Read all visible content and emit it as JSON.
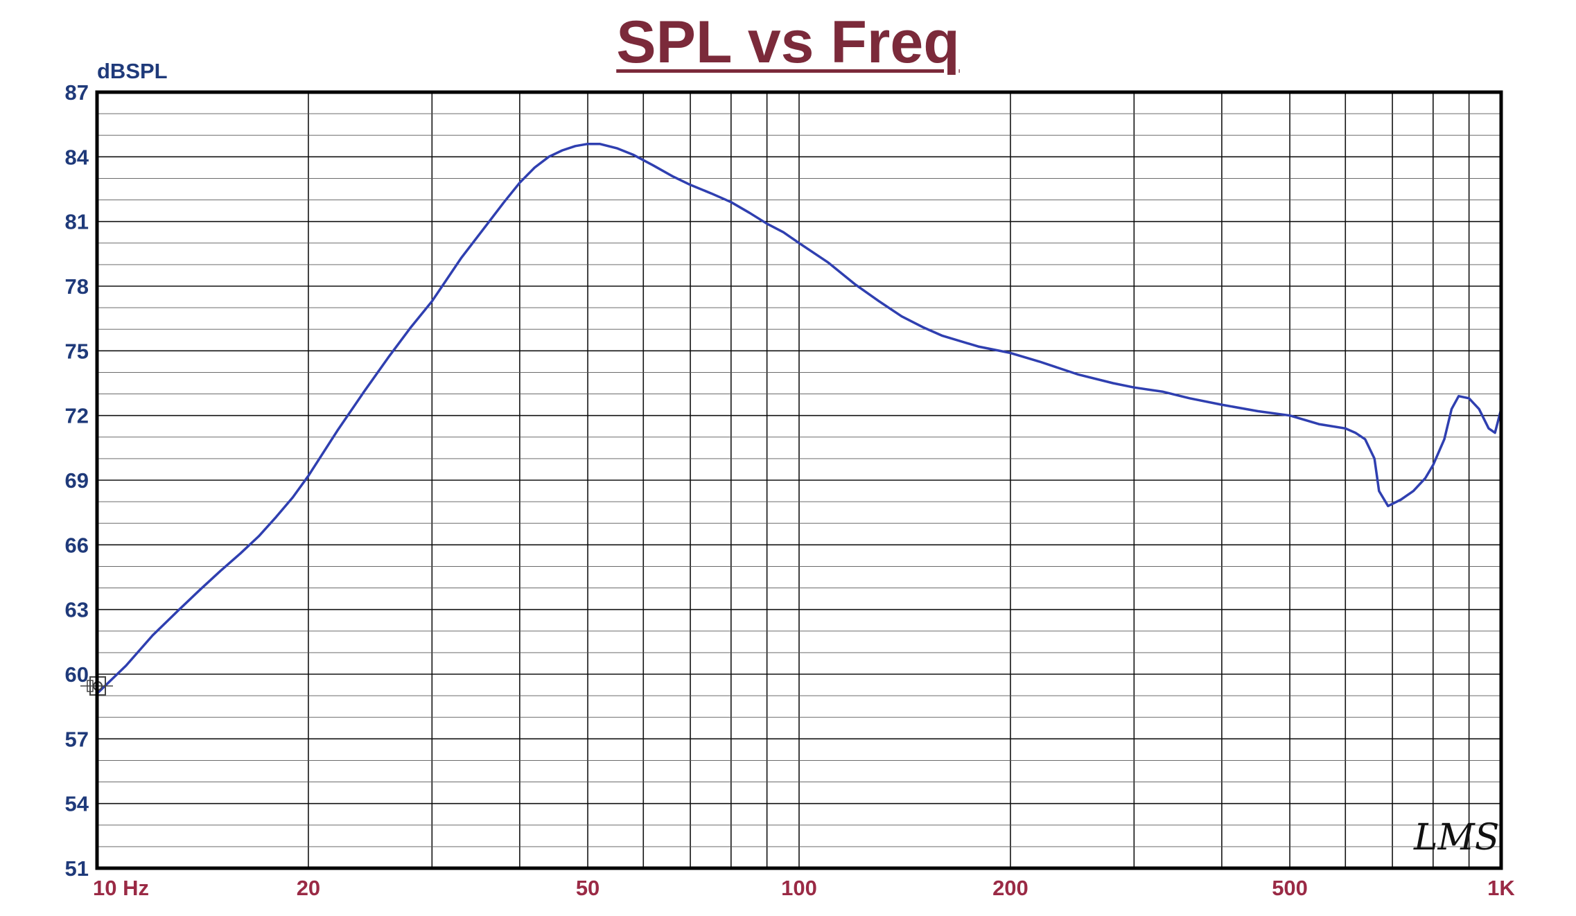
{
  "chart_data": {
    "type": "line",
    "title": "SPL vs Freq",
    "ylabel": "dBSPL",
    "xlabel": "",
    "x_scale": "log",
    "xlim": [
      10,
      1000
    ],
    "ylim": [
      51,
      87
    ],
    "x_ticks": [
      {
        "value": 10,
        "label": "10 Hz"
      },
      {
        "value": 20,
        "label": "20"
      },
      {
        "value": 50,
        "label": "50"
      },
      {
        "value": 100,
        "label": "100"
      },
      {
        "value": 200,
        "label": "200"
      },
      {
        "value": 500,
        "label": "500"
      },
      {
        "value": 1000,
        "label": "1K"
      }
    ],
    "y_ticks": [
      {
        "value": 87,
        "label": "87"
      },
      {
        "value": 84,
        "label": "84"
      },
      {
        "value": 81,
        "label": "81"
      },
      {
        "value": 78,
        "label": "78"
      },
      {
        "value": 75,
        "label": "75"
      },
      {
        "value": 72,
        "label": "72"
      },
      {
        "value": 69,
        "label": "69"
      },
      {
        "value": 66,
        "label": "66"
      },
      {
        "value": 63,
        "label": "63"
      },
      {
        "value": 60,
        "label": "60"
      },
      {
        "value": 57,
        "label": "57"
      },
      {
        "value": 54,
        "label": "54"
      },
      {
        "value": 51,
        "label": "51"
      }
    ],
    "grid": true,
    "series": [
      {
        "color": "#2f3fb0",
        "x": [
          10,
          11,
          12,
          13,
          14,
          15,
          16,
          17,
          18,
          19,
          20,
          22,
          24,
          26,
          28,
          30,
          33,
          36,
          38,
          40,
          42,
          44,
          46,
          48,
          50,
          52,
          55,
          58,
          62,
          66,
          70,
          75,
          80,
          85,
          90,
          95,
          100,
          110,
          120,
          130,
          140,
          150,
          160,
          180,
          200,
          220,
          250,
          280,
          300,
          330,
          360,
          400,
          450,
          500,
          550,
          600,
          620,
          640,
          660,
          670,
          690,
          720,
          750,
          780,
          800,
          830,
          850,
          870,
          900,
          930,
          960,
          980,
          1000
        ],
        "y": [
          59.1,
          60.4,
          61.8,
          62.9,
          63.9,
          64.8,
          65.6,
          66.4,
          67.3,
          68.2,
          69.2,
          71.3,
          73.1,
          74.7,
          76.1,
          77.3,
          79.3,
          80.9,
          81.9,
          82.8,
          83.5,
          84.0,
          84.3,
          84.5,
          84.6,
          84.6,
          84.4,
          84.1,
          83.6,
          83.1,
          82.7,
          82.3,
          81.9,
          81.4,
          80.9,
          80.5,
          80.0,
          79.1,
          78.1,
          77.3,
          76.6,
          76.1,
          75.7,
          75.2,
          74.9,
          74.5,
          73.9,
          73.5,
          73.3,
          73.1,
          72.8,
          72.5,
          72.2,
          72.0,
          71.6,
          71.4,
          71.2,
          70.9,
          70.0,
          68.5,
          67.8,
          68.1,
          68.5,
          69.1,
          69.7,
          70.9,
          72.3,
          72.9,
          72.8,
          72.3,
          71.4,
          71.2,
          72.3
        ]
      }
    ]
  },
  "watermark_text": "LMS"
}
